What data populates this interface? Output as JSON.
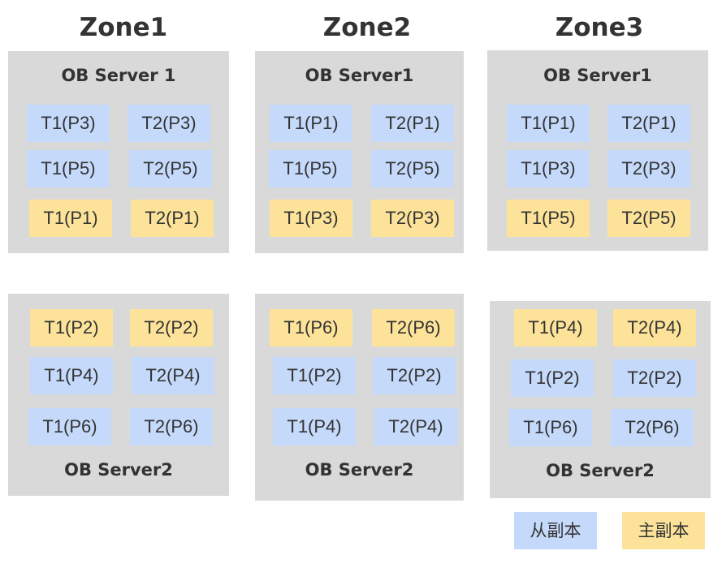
{
  "colors": {
    "server_bg": "#d9d9d9",
    "follower": "#c5d9fa",
    "leader": "#fde39a"
  },
  "zones": [
    {
      "title": "Zone1",
      "servers": [
        {
          "name": "OB Server 1",
          "partitions": [
            {
              "label": "T1(P3)",
              "role": "follower"
            },
            {
              "label": "T2(P3)",
              "role": "follower"
            },
            {
              "label": "T1(P5)",
              "role": "follower"
            },
            {
              "label": "T2(P5)",
              "role": "follower"
            },
            {
              "label": "T1(P1)",
              "role": "leader"
            },
            {
              "label": "T2(P1)",
              "role": "leader"
            }
          ]
        },
        {
          "name": "OB Server2",
          "partitions": [
            {
              "label": "T1(P2)",
              "role": "leader"
            },
            {
              "label": "T2(P2)",
              "role": "leader"
            },
            {
              "label": "T1(P4)",
              "role": "follower"
            },
            {
              "label": "T2(P4)",
              "role": "follower"
            },
            {
              "label": "T1(P6)",
              "role": "follower"
            },
            {
              "label": "T2(P6)",
              "role": "follower"
            }
          ]
        }
      ]
    },
    {
      "title": "Zone2",
      "servers": [
        {
          "name": "OB Server1",
          "partitions": [
            {
              "label": "T1(P1)",
              "role": "follower"
            },
            {
              "label": "T2(P1)",
              "role": "follower"
            },
            {
              "label": "T1(P5)",
              "role": "follower"
            },
            {
              "label": "T2(P5)",
              "role": "follower"
            },
            {
              "label": "T1(P3)",
              "role": "leader"
            },
            {
              "label": "T2(P3)",
              "role": "leader"
            }
          ]
        },
        {
          "name": "OB Server2",
          "partitions": [
            {
              "label": "T1(P6)",
              "role": "leader"
            },
            {
              "label": "T2(P6)",
              "role": "leader"
            },
            {
              "label": "T1(P2)",
              "role": "follower"
            },
            {
              "label": "T2(P2)",
              "role": "follower"
            },
            {
              "label": "T1(P4)",
              "role": "follower"
            },
            {
              "label": "T2(P4)",
              "role": "follower"
            }
          ]
        }
      ]
    },
    {
      "title": "Zone3",
      "servers": [
        {
          "name": "OB Server1",
          "partitions": [
            {
              "label": "T1(P1)",
              "role": "follower"
            },
            {
              "label": "T2(P1)",
              "role": "follower"
            },
            {
              "label": "T1(P3)",
              "role": "follower"
            },
            {
              "label": "T2(P3)",
              "role": "follower"
            },
            {
              "label": "T1(P5)",
              "role": "leader"
            },
            {
              "label": "T2(P5)",
              "role": "leader"
            }
          ]
        },
        {
          "name": "OB Server2",
          "partitions": [
            {
              "label": "T1(P4)",
              "role": "leader"
            },
            {
              "label": "T2(P4)",
              "role": "leader"
            },
            {
              "label": "T1(P2)",
              "role": "follower"
            },
            {
              "label": "T2(P2)",
              "role": "follower"
            },
            {
              "label": "T1(P6)",
              "role": "follower"
            },
            {
              "label": "T2(P6)",
              "role": "follower"
            }
          ]
        }
      ]
    }
  ],
  "legend": {
    "follower_label": "从副本",
    "leader_label": "主副本"
  }
}
